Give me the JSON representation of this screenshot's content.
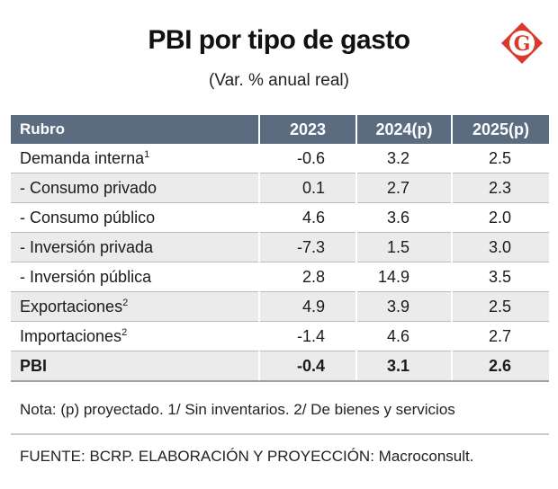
{
  "header": {
    "title": "PBI por tipo de gasto",
    "subtitle": "(Var. % anual real)",
    "logo_letter": "G"
  },
  "colors": {
    "header_bg": "#5b6b80",
    "logo_red": "#d83b2b",
    "row_alt": "#ebebeb"
  },
  "chart_data": {
    "type": "table",
    "title": "PBI por tipo de gasto",
    "subtitle": "(Var. % anual real)",
    "columns": [
      "Rubro",
      "2023",
      "2024(p)",
      "2025(p)"
    ],
    "rows": [
      {
        "label": "Demanda interna",
        "sup": "1",
        "values": [
          "-0.6",
          "3.2",
          "2.5"
        ]
      },
      {
        "label": "- Consumo privado",
        "sup": "",
        "values": [
          "0.1",
          "2.7",
          "2.3"
        ]
      },
      {
        "label": "- Consumo público",
        "sup": "",
        "values": [
          "4.6",
          "3.6",
          "2.0"
        ]
      },
      {
        "label": "- Inversión privada",
        "sup": "",
        "values": [
          "-7.3",
          "1.5",
          "3.0"
        ]
      },
      {
        "label": "- Inversión pública",
        "sup": "",
        "values": [
          "2.8",
          "14.9",
          "3.5"
        ]
      },
      {
        "label": "Exportaciones",
        "sup": "2",
        "values": [
          "4.9",
          "3.9",
          "2.5"
        ]
      },
      {
        "label": "Importaciones",
        "sup": "2",
        "values": [
          "-1.4",
          "4.6",
          "2.7"
        ]
      },
      {
        "label": "PBI",
        "sup": "",
        "values": [
          "-0.4",
          "3.1",
          "2.6"
        ],
        "total": true
      }
    ]
  },
  "footer": {
    "note": "Nota: (p) proyectado. 1/ Sin inventarios. 2/ De bienes y servicios",
    "source": "FUENTE: BCRP. ELABORACIÓN Y PROYECCIÓN: Macroconsult."
  }
}
